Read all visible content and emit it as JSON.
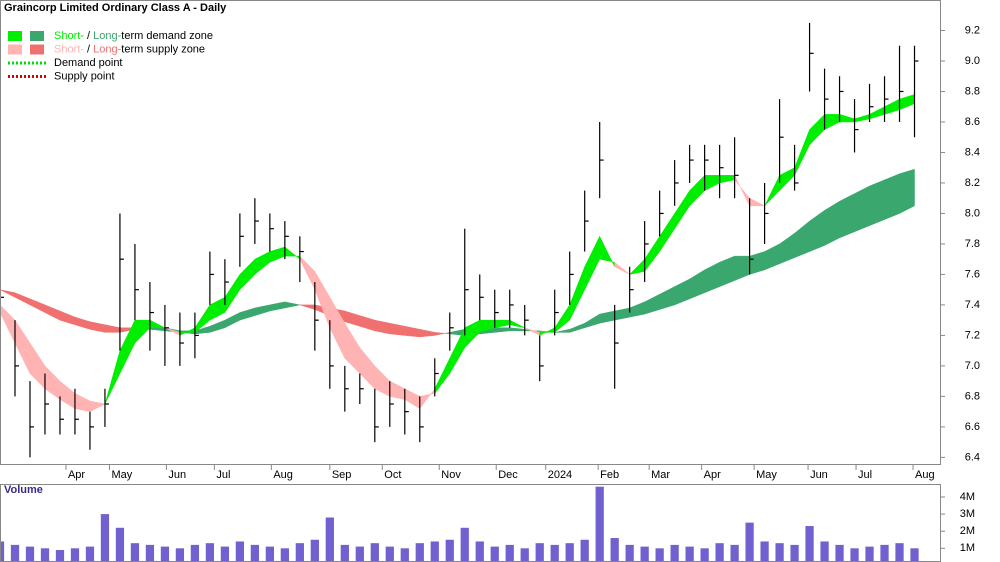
{
  "chart_data": [
    {
      "type": "ohlc",
      "title": "Graincorp Limited Ordinary Class A - Daily",
      "x": [
        0,
        1,
        2,
        3,
        4,
        5,
        6,
        7,
        8,
        9,
        10,
        11,
        12,
        13,
        14,
        15,
        16,
        17,
        18,
        19,
        20,
        21,
        22,
        23,
        24,
        25,
        26,
        27,
        28,
        29,
        30,
        31,
        32,
        33,
        34,
        35,
        36,
        37,
        38,
        39,
        40,
        41,
        42,
        43,
        44,
        45,
        46,
        47,
        48,
        49,
        50,
        51,
        52,
        53,
        54,
        55,
        56,
        57,
        58,
        59,
        60,
        61
      ],
      "high": [
        7.55,
        7.3,
        6.9,
        6.95,
        6.8,
        6.85,
        6.7,
        6.85,
        8.0,
        7.8,
        7.55,
        7.4,
        7.35,
        7.35,
        7.75,
        7.7,
        8.0,
        8.1,
        8.0,
        7.95,
        7.85,
        7.55,
        7.3,
        7.0,
        6.95,
        6.85,
        6.9,
        6.85,
        6.8,
        7.05,
        7.35,
        7.9,
        7.6,
        7.5,
        7.5,
        7.4,
        7.2,
        7.5,
        7.75,
        8.15,
        8.6,
        7.4,
        7.65,
        7.95,
        8.15,
        8.35,
        8.45,
        8.45,
        8.45,
        8.5,
        8.1,
        8.2,
        8.75,
        8.45,
        9.25,
        8.95,
        8.9,
        8.75,
        8.85,
        8.9,
        9.1,
        9.1
      ],
      "low": [
        7.3,
        6.8,
        6.4,
        6.55,
        6.55,
        6.55,
        6.45,
        6.6,
        7.1,
        7.3,
        7.1,
        7.0,
        7.0,
        7.05,
        7.4,
        7.4,
        7.65,
        7.8,
        7.75,
        7.7,
        7.55,
        7.1,
        6.85,
        6.7,
        6.75,
        6.5,
        6.6,
        6.55,
        6.5,
        6.8,
        7.1,
        7.2,
        7.3,
        7.25,
        7.25,
        7.2,
        6.9,
        7.2,
        7.4,
        7.75,
        8.1,
        6.85,
        7.35,
        7.55,
        7.85,
        8.05,
        8.2,
        8.15,
        8.1,
        8.1,
        7.6,
        7.8,
        8.2,
        8.15,
        8.8,
        8.55,
        8.6,
        8.4,
        8.6,
        8.6,
        8.6,
        8.5
      ],
      "close": [
        7.45,
        7.0,
        6.6,
        6.75,
        6.65,
        6.65,
        6.6,
        6.75,
        7.7,
        7.5,
        7.35,
        7.25,
        7.15,
        7.2,
        7.6,
        7.55,
        7.85,
        7.95,
        7.9,
        7.85,
        7.75,
        7.3,
        7.0,
        6.85,
        6.85,
        6.6,
        6.75,
        6.7,
        6.6,
        6.95,
        7.25,
        7.5,
        7.45,
        7.35,
        7.4,
        7.3,
        7.0,
        7.35,
        7.6,
        7.95,
        8.35,
        7.15,
        7.5,
        7.8,
        8.0,
        8.2,
        8.35,
        8.35,
        8.3,
        8.25,
        7.7,
        8.0,
        8.5,
        8.2,
        9.05,
        8.75,
        8.8,
        8.55,
        8.7,
        8.75,
        8.8,
        9.0
      ],
      "color": "#000000",
      "short_zone": {
        "fast": [
          7.35,
          7.15,
          6.95,
          6.85,
          6.78,
          6.72,
          6.7,
          6.75,
          7.1,
          7.3,
          7.3,
          7.25,
          7.2,
          7.25,
          7.4,
          7.45,
          7.6,
          7.7,
          7.75,
          7.78,
          7.7,
          7.5,
          7.25,
          7.05,
          6.95,
          6.85,
          6.8,
          6.78,
          6.72,
          6.85,
          7.05,
          7.25,
          7.3,
          7.3,
          7.3,
          7.25,
          7.2,
          7.25,
          7.4,
          7.65,
          7.85,
          7.65,
          7.6,
          7.7,
          7.85,
          8.0,
          8.15,
          8.25,
          8.25,
          8.25,
          8.05,
          8.05,
          8.25,
          8.3,
          8.55,
          8.65,
          8.65,
          8.62,
          8.65,
          8.7,
          8.75,
          8.78
        ],
        "slow": [
          7.4,
          7.3,
          7.15,
          7.0,
          6.9,
          6.82,
          6.77,
          6.75,
          6.95,
          7.15,
          7.25,
          7.25,
          7.22,
          7.22,
          7.3,
          7.35,
          7.5,
          7.6,
          7.68,
          7.72,
          7.72,
          7.62,
          7.45,
          7.28,
          7.12,
          7.0,
          6.9,
          6.85,
          6.8,
          6.82,
          6.95,
          7.12,
          7.22,
          7.25,
          7.27,
          7.25,
          7.22,
          7.22,
          7.3,
          7.5,
          7.7,
          7.68,
          7.6,
          7.62,
          7.75,
          7.9,
          8.05,
          8.15,
          8.2,
          8.22,
          8.1,
          8.05,
          8.15,
          8.25,
          8.45,
          8.55,
          8.6,
          8.6,
          8.62,
          8.65,
          8.68,
          8.72
        ]
      },
      "long_zone": {
        "fast": [
          7.5,
          7.45,
          7.4,
          7.35,
          7.3,
          7.27,
          7.24,
          7.22,
          7.22,
          7.24,
          7.26,
          7.25,
          7.23,
          7.23,
          7.26,
          7.3,
          7.35,
          7.38,
          7.4,
          7.42,
          7.4,
          7.37,
          7.33,
          7.29,
          7.26,
          7.23,
          7.21,
          7.2,
          7.19,
          7.2,
          7.22,
          7.24,
          7.25,
          7.25,
          7.25,
          7.24,
          7.22,
          7.22,
          7.24,
          7.28,
          7.34,
          7.36,
          7.38,
          7.42,
          7.47,
          7.52,
          7.57,
          7.63,
          7.68,
          7.72,
          7.72,
          7.75,
          7.8,
          7.87,
          7.95,
          8.02,
          8.08,
          8.13,
          8.18,
          8.22,
          8.26,
          8.29
        ],
        "slow": [
          7.5,
          7.48,
          7.44,
          7.4,
          7.36,
          7.32,
          7.29,
          7.27,
          7.25,
          7.25,
          7.24,
          7.23,
          7.22,
          7.21,
          7.22,
          7.25,
          7.3,
          7.33,
          7.36,
          7.38,
          7.4,
          7.4,
          7.38,
          7.36,
          7.33,
          7.3,
          7.28,
          7.26,
          7.24,
          7.22,
          7.21,
          7.2,
          7.21,
          7.22,
          7.23,
          7.23,
          7.23,
          7.22,
          7.22,
          7.25,
          7.28,
          7.3,
          7.32,
          7.34,
          7.37,
          7.4,
          7.44,
          7.48,
          7.52,
          7.56,
          7.6,
          7.63,
          7.67,
          7.71,
          7.75,
          7.79,
          7.84,
          7.88,
          7.92,
          7.96,
          8.0,
          8.05
        ]
      },
      "legend": [
        {
          "labels": [
            "Short-",
            " / ",
            "Long-",
            "term demand zone"
          ],
          "short_color": "#00ee00",
          "long_color": "#3aa86e"
        },
        {
          "labels": [
            "Short-",
            " / ",
            "Long-",
            "term supply zone"
          ],
          "short_color": "#ffb3b3",
          "long_color": "#f07070"
        },
        {
          "labels": [
            "Demand point"
          ],
          "color": "#00dd00"
        },
        {
          "labels": [
            "Supply point"
          ],
          "color": "#dd0000"
        }
      ],
      "ylim": [
        6.35,
        9.4
      ],
      "yticks": [
        6.4,
        6.6,
        6.8,
        {
          "value": 7,
          "label": "7.0"
        },
        7.2,
        7.4,
        7.6,
        7.8,
        {
          "value": 8,
          "label": "8.0"
        },
        8.2,
        8.4,
        8.6,
        8.8,
        {
          "value": 9,
          "label": "9.0"
        },
        9.2
      ],
      "xlim": [
        0,
        62.7
      ],
      "xticks": [
        {
          "value": 4.4,
          "label": "Apr"
        },
        {
          "value": 7.3,
          "label": "May"
        },
        {
          "value": 11.1,
          "label": "Jun"
        },
        {
          "value": 14.3,
          "label": "Jul"
        },
        {
          "value": 18.1,
          "label": "Aug"
        },
        {
          "value": 22,
          "label": "Sep"
        },
        {
          "value": 25.5,
          "label": "Oct"
        },
        {
          "value": 29.3,
          "label": "Nov"
        },
        {
          "value": 33.1,
          "label": "Dec"
        },
        {
          "value": 36.4,
          "label": "2024"
        },
        {
          "value": 39.9,
          "label": "Feb"
        },
        {
          "value": 43.3,
          "label": "Mar"
        },
        {
          "value": 46.8,
          "label": "Apr"
        },
        {
          "value": 50.3,
          "label": "May"
        },
        {
          "value": 53.9,
          "label": "Jun"
        },
        {
          "value": 57.1,
          "label": "Jul"
        },
        {
          "value": 60.9,
          "label": "Aug"
        }
      ]
    },
    {
      "type": "bar",
      "title": "Volume",
      "x": [
        0,
        1,
        2,
        3,
        4,
        5,
        6,
        7,
        8,
        9,
        10,
        11,
        12,
        13,
        14,
        15,
        16,
        17,
        18,
        19,
        20,
        21,
        22,
        23,
        24,
        25,
        26,
        27,
        28,
        29,
        30,
        31,
        32,
        33,
        34,
        35,
        36,
        37,
        38,
        39,
        40,
        41,
        42,
        43,
        44,
        45,
        46,
        47,
        48,
        49,
        50,
        51,
        52,
        53,
        54,
        55,
        56,
        57,
        58,
        59,
        60,
        61
      ],
      "values": [
        1400000,
        1200000,
        1100000,
        1000000,
        900000,
        1000000,
        1100000,
        3000000,
        2200000,
        1300000,
        1200000,
        1100000,
        1000000,
        1200000,
        1300000,
        1100000,
        1400000,
        1200000,
        1100000,
        1000000,
        1300000,
        1500000,
        2800000,
        1200000,
        1100000,
        1300000,
        1100000,
        1000000,
        1300000,
        1400000,
        1500000,
        2200000,
        1400000,
        1100000,
        1200000,
        1000000,
        1300000,
        1200000,
        1300000,
        1500000,
        4600000,
        1600000,
        1200000,
        1100000,
        1000000,
        1200000,
        1100000,
        1000000,
        1300000,
        1200000,
        2500000,
        1400000,
        1300000,
        1200000,
        2300000,
        1400000,
        1200000,
        1000000,
        1100000,
        1200000,
        1300000,
        1000000
      ],
      "color": "#7060d0",
      "ylim": [
        200000,
        4700000
      ],
      "yticks": [
        {
          "value": 1000000,
          "label": "1M"
        },
        {
          "value": 2000000,
          "label": "2M"
        },
        {
          "value": 3000000,
          "label": "3M"
        },
        {
          "value": 4000000,
          "label": "4M"
        }
      ],
      "xlim": [
        0,
        62.7
      ]
    }
  ]
}
